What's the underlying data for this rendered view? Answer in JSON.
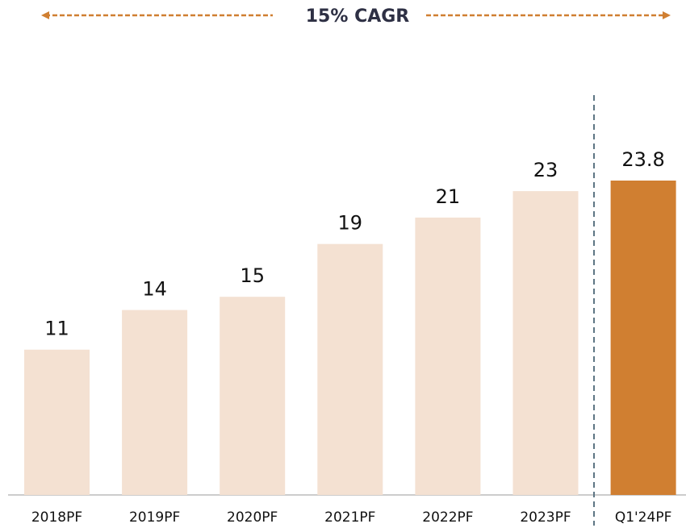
{
  "chart_data": {
    "type": "bar",
    "annotation": "15% CAGR",
    "categories": [
      "2018PF",
      "2019PF",
      "2020PF",
      "2021PF",
      "2022PF",
      "2023PF",
      "Q1'24PF"
    ],
    "values": [
      11,
      14,
      15,
      19,
      21,
      23,
      23.8
    ],
    "colors": [
      "#f4e1d2",
      "#f4e1d2",
      "#f4e1d2",
      "#f4e1d2",
      "#f4e1d2",
      "#f4e1d2",
      "#d07f31"
    ]
  }
}
